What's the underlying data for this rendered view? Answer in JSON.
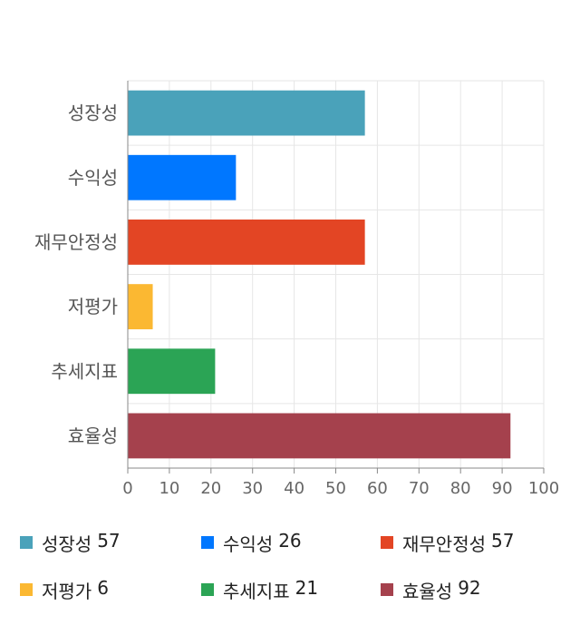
{
  "chart_data": {
    "type": "bar",
    "orientation": "horizontal",
    "categories": [
      "성장성",
      "수익성",
      "재무안정성",
      "저평가",
      "추세지표",
      "효율성"
    ],
    "values": [
      57,
      26,
      57,
      6,
      21,
      92
    ],
    "colors": [
      "#4aa2ba",
      "#0077ff",
      "#e34524",
      "#fbb832",
      "#2ba455",
      "#a5414d"
    ],
    "xlim": [
      0,
      100
    ],
    "xticks": [
      "0",
      "10",
      "20",
      "30",
      "40",
      "50",
      "60",
      "70",
      "80",
      "90",
      "100"
    ],
    "grid": true,
    "legend_position": "bottom",
    "legend": [
      {
        "label": "성장성",
        "value": "57"
      },
      {
        "label": "수익성",
        "value": "26"
      },
      {
        "label": "재무안정성",
        "value": "57"
      },
      {
        "label": "저평가",
        "value": "6"
      },
      {
        "label": "추세지표",
        "value": "21"
      },
      {
        "label": "효율성",
        "value": "92"
      }
    ]
  }
}
